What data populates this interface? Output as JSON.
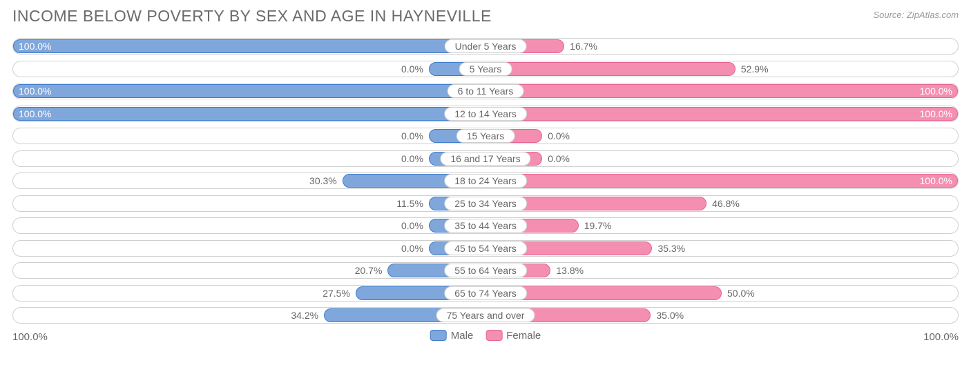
{
  "title": "INCOME BELOW POVERTY BY SEX AND AGE IN HAYNEVILLE",
  "source": "Source: ZipAtlas.com",
  "chart": {
    "type": "diverging-bar",
    "male_color": "#7fa7db",
    "male_border": "#3d7cc9",
    "female_color": "#f48fb1",
    "female_border": "#e66395",
    "row_border": "#cfcfcf",
    "background": "#ffffff",
    "text_color": "#676767",
    "min_bar_pct": 12,
    "label_inside_threshold": 60,
    "categories": [
      {
        "label": "Under 5 Years",
        "male": 100.0,
        "female": 16.7,
        "male_text": "100.0%",
        "female_text": "16.7%"
      },
      {
        "label": "5 Years",
        "male": 0.0,
        "female": 52.9,
        "male_text": "0.0%",
        "female_text": "52.9%"
      },
      {
        "label": "6 to 11 Years",
        "male": 100.0,
        "female": 100.0,
        "male_text": "100.0%",
        "female_text": "100.0%"
      },
      {
        "label": "12 to 14 Years",
        "male": 100.0,
        "female": 100.0,
        "male_text": "100.0%",
        "female_text": "100.0%"
      },
      {
        "label": "15 Years",
        "male": 0.0,
        "female": 0.0,
        "male_text": "0.0%",
        "female_text": "0.0%"
      },
      {
        "label": "16 and 17 Years",
        "male": 0.0,
        "female": 0.0,
        "male_text": "0.0%",
        "female_text": "0.0%"
      },
      {
        "label": "18 to 24 Years",
        "male": 30.3,
        "female": 100.0,
        "male_text": "30.3%",
        "female_text": "100.0%"
      },
      {
        "label": "25 to 34 Years",
        "male": 11.5,
        "female": 46.8,
        "male_text": "11.5%",
        "female_text": "46.8%"
      },
      {
        "label": "35 to 44 Years",
        "male": 0.0,
        "female": 19.7,
        "male_text": "0.0%",
        "female_text": "19.7%"
      },
      {
        "label": "45 to 54 Years",
        "male": 0.0,
        "female": 35.3,
        "male_text": "0.0%",
        "female_text": "35.3%"
      },
      {
        "label": "55 to 64 Years",
        "male": 20.7,
        "female": 13.8,
        "male_text": "20.7%",
        "female_text": "13.8%"
      },
      {
        "label": "65 to 74 Years",
        "male": 27.5,
        "female": 50.0,
        "male_text": "27.5%",
        "female_text": "50.0%"
      },
      {
        "label": "75 Years and over",
        "male": 34.2,
        "female": 35.0,
        "male_text": "34.2%",
        "female_text": "35.0%"
      }
    ],
    "axis": {
      "left": "100.0%",
      "right": "100.0%"
    },
    "legend": {
      "male": "Male",
      "female": "Female"
    }
  }
}
